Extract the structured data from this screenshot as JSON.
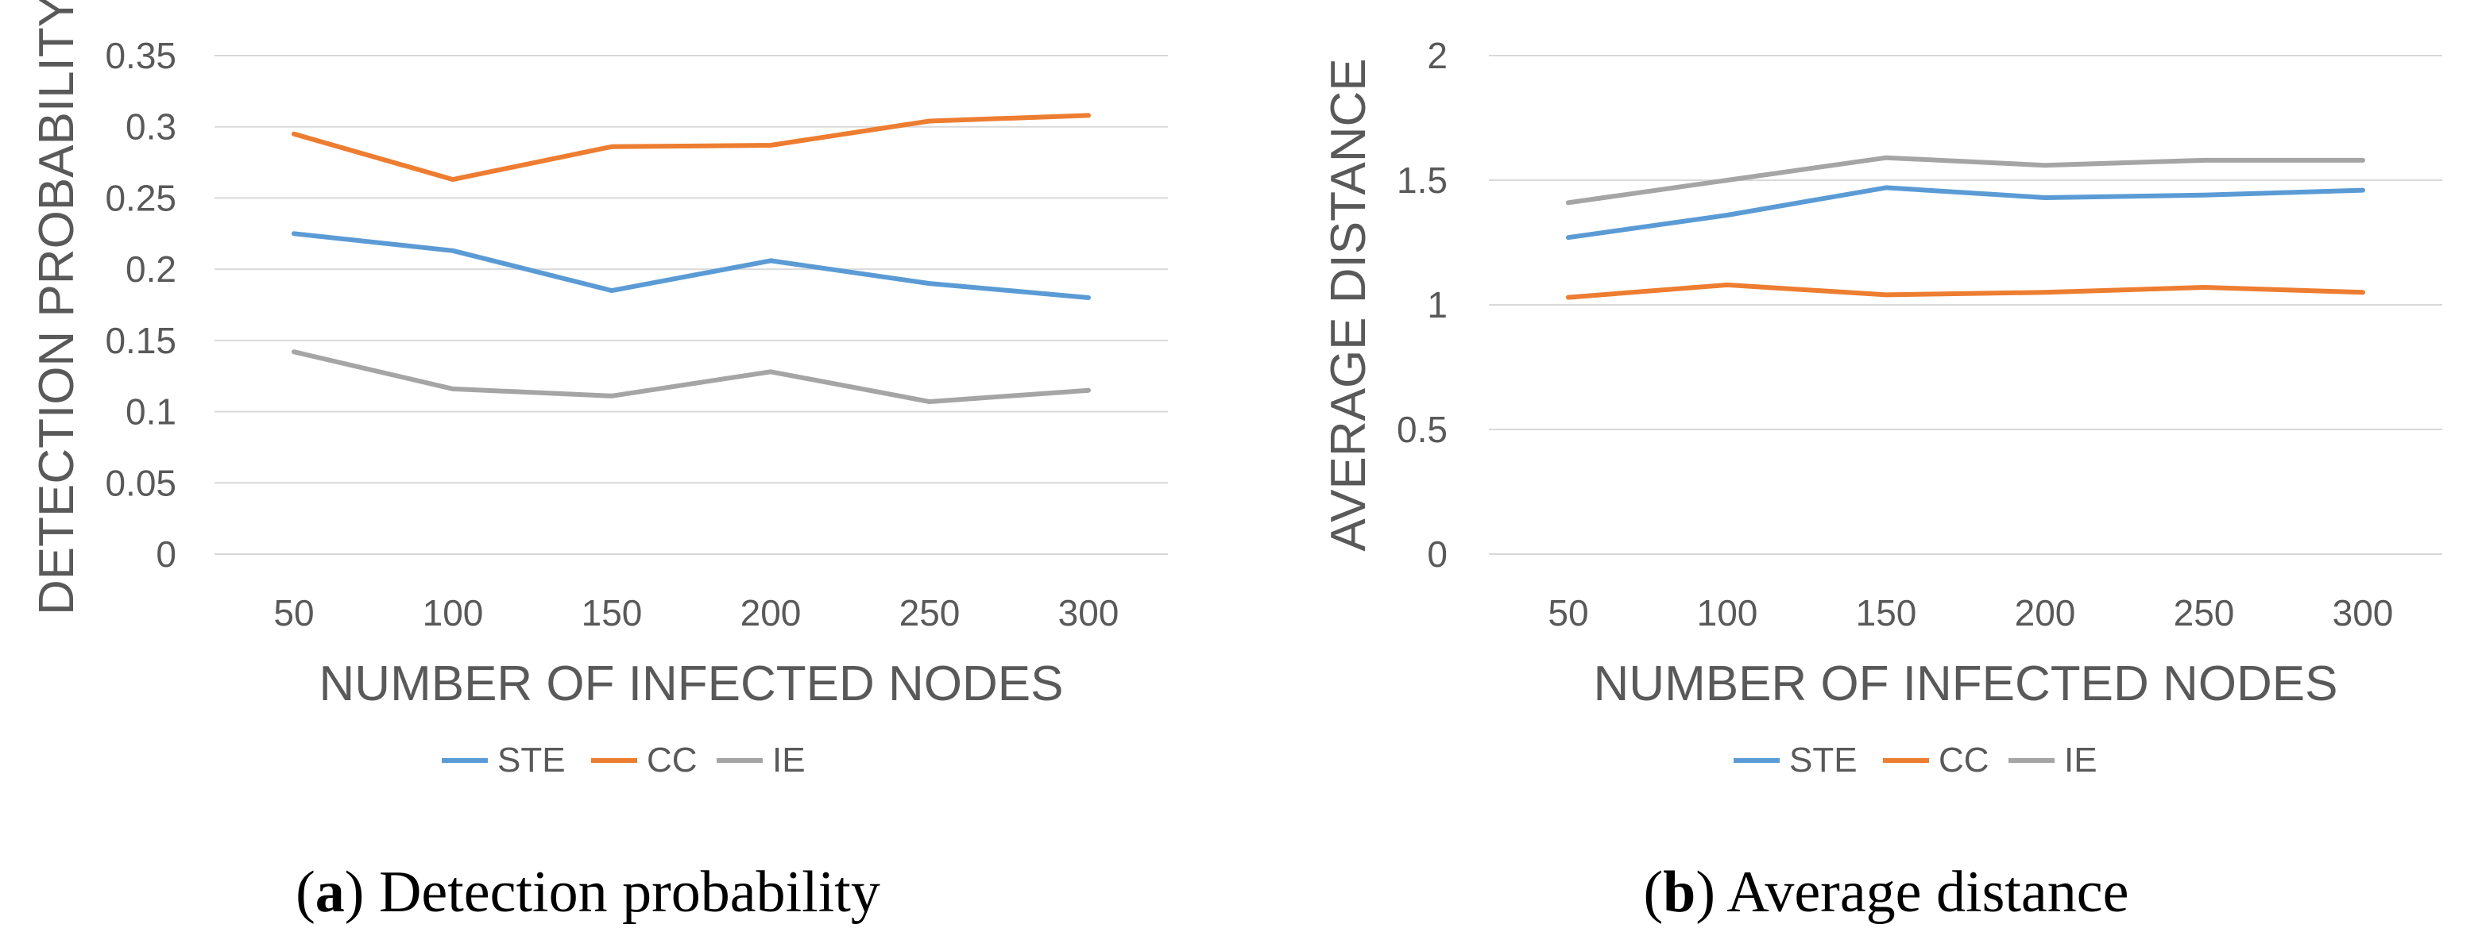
{
  "chart_data": [
    {
      "type": "line",
      "title": "",
      "xlabel": "NUMBER OF INFECTED NODES",
      "ylabel": "DETECTION PROBABILITY",
      "categories": [
        "50",
        "100",
        "150",
        "200",
        "250",
        "300"
      ],
      "yticks": [
        "0",
        "0.05",
        "0.1",
        "0.15",
        "0.2",
        "0.25",
        "0.3",
        "0.35"
      ],
      "ylim": [
        0,
        0.35
      ],
      "grid": true,
      "legend": "bottom",
      "series": [
        {
          "name": "STE",
          "color": "#5b9bd5",
          "values": [
            0.225,
            0.213,
            0.185,
            0.206,
            0.19,
            0.18
          ]
        },
        {
          "name": "CC",
          "color": "#ed7d31",
          "values": [
            0.295,
            0.263,
            0.286,
            0.287,
            0.304,
            0.308
          ]
        },
        {
          "name": "IE",
          "color": "#a5a5a5",
          "values": [
            0.142,
            0.116,
            0.111,
            0.128,
            0.107,
            0.115
          ]
        }
      ],
      "caption_letter": "a",
      "caption_text": "Detection probability"
    },
    {
      "type": "line",
      "title": "",
      "xlabel": "NUMBER OF INFECTED NODES",
      "ylabel": "AVERAGE DISTANCE",
      "categories": [
        "50",
        "100",
        "150",
        "200",
        "250",
        "300"
      ],
      "yticks": [
        "0",
        "0.5",
        "1",
        "1.5",
        "2"
      ],
      "ylim": [
        0,
        2
      ],
      "grid": true,
      "legend": "bottom",
      "series": [
        {
          "name": "STE",
          "color": "#5b9bd5",
          "values": [
            1.27,
            1.36,
            1.47,
            1.43,
            1.44,
            1.46
          ]
        },
        {
          "name": "CC",
          "color": "#ed7d31",
          "values": [
            1.03,
            1.08,
            1.04,
            1.05,
            1.07,
            1.05
          ]
        },
        {
          "name": "IE",
          "color": "#a5a5a5",
          "values": [
            1.41,
            1.5,
            1.59,
            1.56,
            1.58,
            1.58
          ]
        }
      ],
      "caption_letter": "b",
      "caption_text": "Average distance"
    }
  ]
}
